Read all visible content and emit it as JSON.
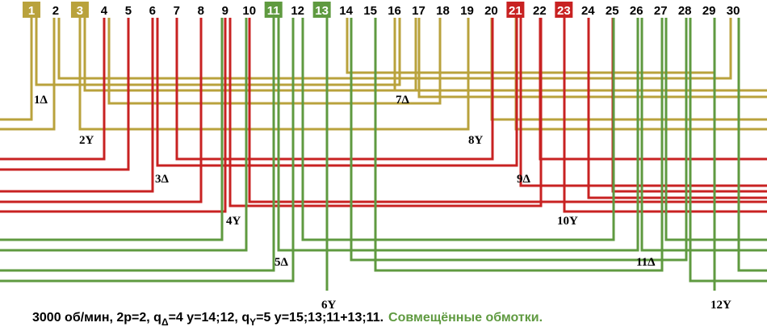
{
  "slots": [
    "1",
    "2",
    "3",
    "4",
    "5",
    "6",
    "7",
    "8",
    "9",
    "10",
    "11",
    "12",
    "13",
    "14",
    "15",
    "16",
    "17",
    "18",
    "19",
    "20",
    "21",
    "22",
    "23",
    "24",
    "25",
    "26",
    "27",
    "28",
    "29",
    "30"
  ],
  "labels": [
    "1Δ",
    "2Y",
    "7Δ",
    "8Y",
    "3Δ",
    "9Δ",
    "4Y",
    "10Y",
    "5Δ",
    "11Δ",
    "6Y",
    "12Y"
  ],
  "caption": {
    "part1": "3000 об/мин, 2p=2, q",
    "sub1": "Δ",
    "part2": "=4 y=14;12, q",
    "sub2": "Y",
    "part3": "=5 y=15;13;11+13;11.",
    "note": "Совмещённые обмотки."
  }
}
